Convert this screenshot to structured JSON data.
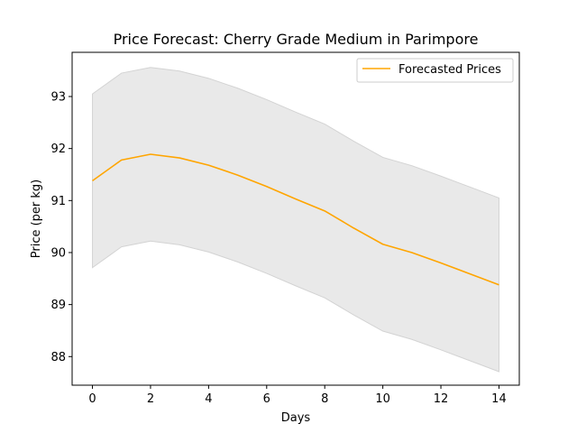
{
  "chart_data": {
    "type": "line",
    "title": "Price Forecast: Cherry Grade Medium in Parimpore",
    "xlabel": "Days",
    "ylabel": "Price (per kg)",
    "xlim": [
      -0.7,
      14.7
    ],
    "ylim": [
      87.45,
      93.85
    ],
    "xticks": [
      0,
      2,
      4,
      6,
      8,
      10,
      12,
      14
    ],
    "yticks": [
      88,
      89,
      90,
      91,
      92,
      93
    ],
    "grid": false,
    "legend_position": "top-right",
    "colors": {
      "line": "#ffa500",
      "band": "#d3d3d3"
    },
    "series": [
      {
        "name": "Forecasted Prices",
        "x": [
          0,
          1,
          2,
          3,
          4,
          5,
          6,
          7,
          8,
          9,
          10,
          11,
          12,
          13,
          14
        ],
        "values": [
          91.38,
          91.78,
          91.89,
          91.82,
          91.68,
          91.49,
          91.27,
          91.03,
          90.8,
          90.47,
          90.16,
          90.0,
          89.8,
          89.59,
          89.38
        ]
      }
    ],
    "confidence_band": {
      "x": [
        0,
        1,
        2,
        3,
        4,
        5,
        6,
        7,
        8,
        9,
        10,
        11,
        12,
        13,
        14
      ],
      "upper": [
        93.05,
        93.45,
        93.56,
        93.49,
        93.35,
        93.16,
        92.94,
        92.7,
        92.47,
        92.14,
        91.83,
        91.67,
        91.47,
        91.26,
        91.05
      ],
      "lower": [
        89.71,
        90.11,
        90.22,
        90.15,
        90.01,
        89.82,
        89.6,
        89.36,
        89.13,
        88.8,
        88.49,
        88.33,
        88.13,
        87.92,
        87.71
      ]
    }
  }
}
